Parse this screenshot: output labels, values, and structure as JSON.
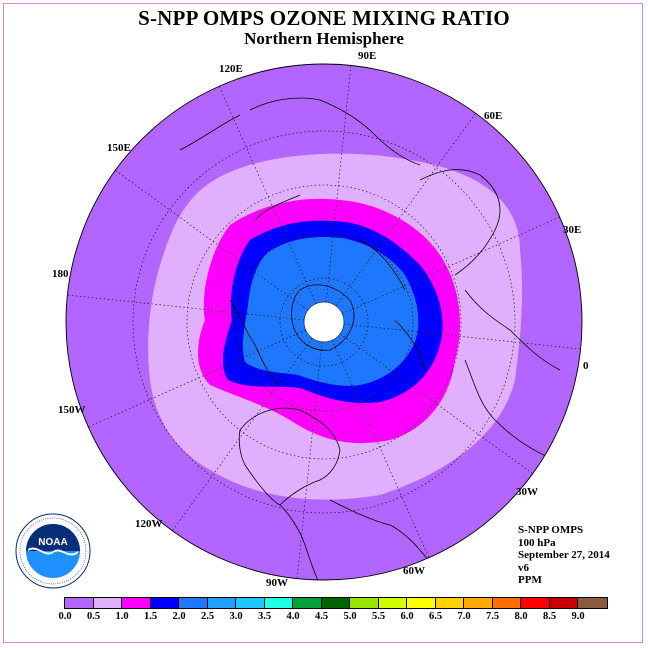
{
  "title": "S-NPP OMPS OZONE MIXING RATIO",
  "subtitle": "Northern Hemisphere",
  "longitude_labels": [
    "90E",
    "60E",
    "30E",
    "0",
    "30W",
    "60W",
    "90W",
    "120W",
    "150W",
    "180",
    "150E",
    "120E"
  ],
  "info": {
    "instrument": "S-NPP OMPS",
    "level": "100 hPa",
    "date": "September 27, 2014",
    "version": "v6",
    "units": "PPM"
  },
  "logo_text": "NOAA",
  "colorbar": {
    "colors": [
      "#b266ff",
      "#e0b0ff",
      "#ff00ff",
      "#0000ff",
      "#1e78ff",
      "#1ea0ff",
      "#1ec8ff",
      "#1effe6",
      "#00a03c",
      "#006400",
      "#96e600",
      "#d2ff00",
      "#ffff00",
      "#ffd200",
      "#ffaa00",
      "#ff6e00",
      "#ff0000",
      "#c80000",
      "#8b5a3c"
    ],
    "ticks": [
      "0.0",
      "0.5",
      "1.0",
      "1.5",
      "2.0",
      "2.5",
      "3.0",
      "3.5",
      "4.0",
      "4.5",
      "5.0",
      "5.5",
      "6.0",
      "6.5",
      "7.0",
      "7.5",
      "8.0",
      "8.5",
      "9.0"
    ]
  },
  "legend_visible": true,
  "projection": "north polar stereographic",
  "field_levels_ppm": [
    "0.0-0.5",
    "0.5-1.0",
    "1.0-1.5",
    "1.5-2.0",
    "2.0-2.5"
  ],
  "missing_data_at_pole": true
}
